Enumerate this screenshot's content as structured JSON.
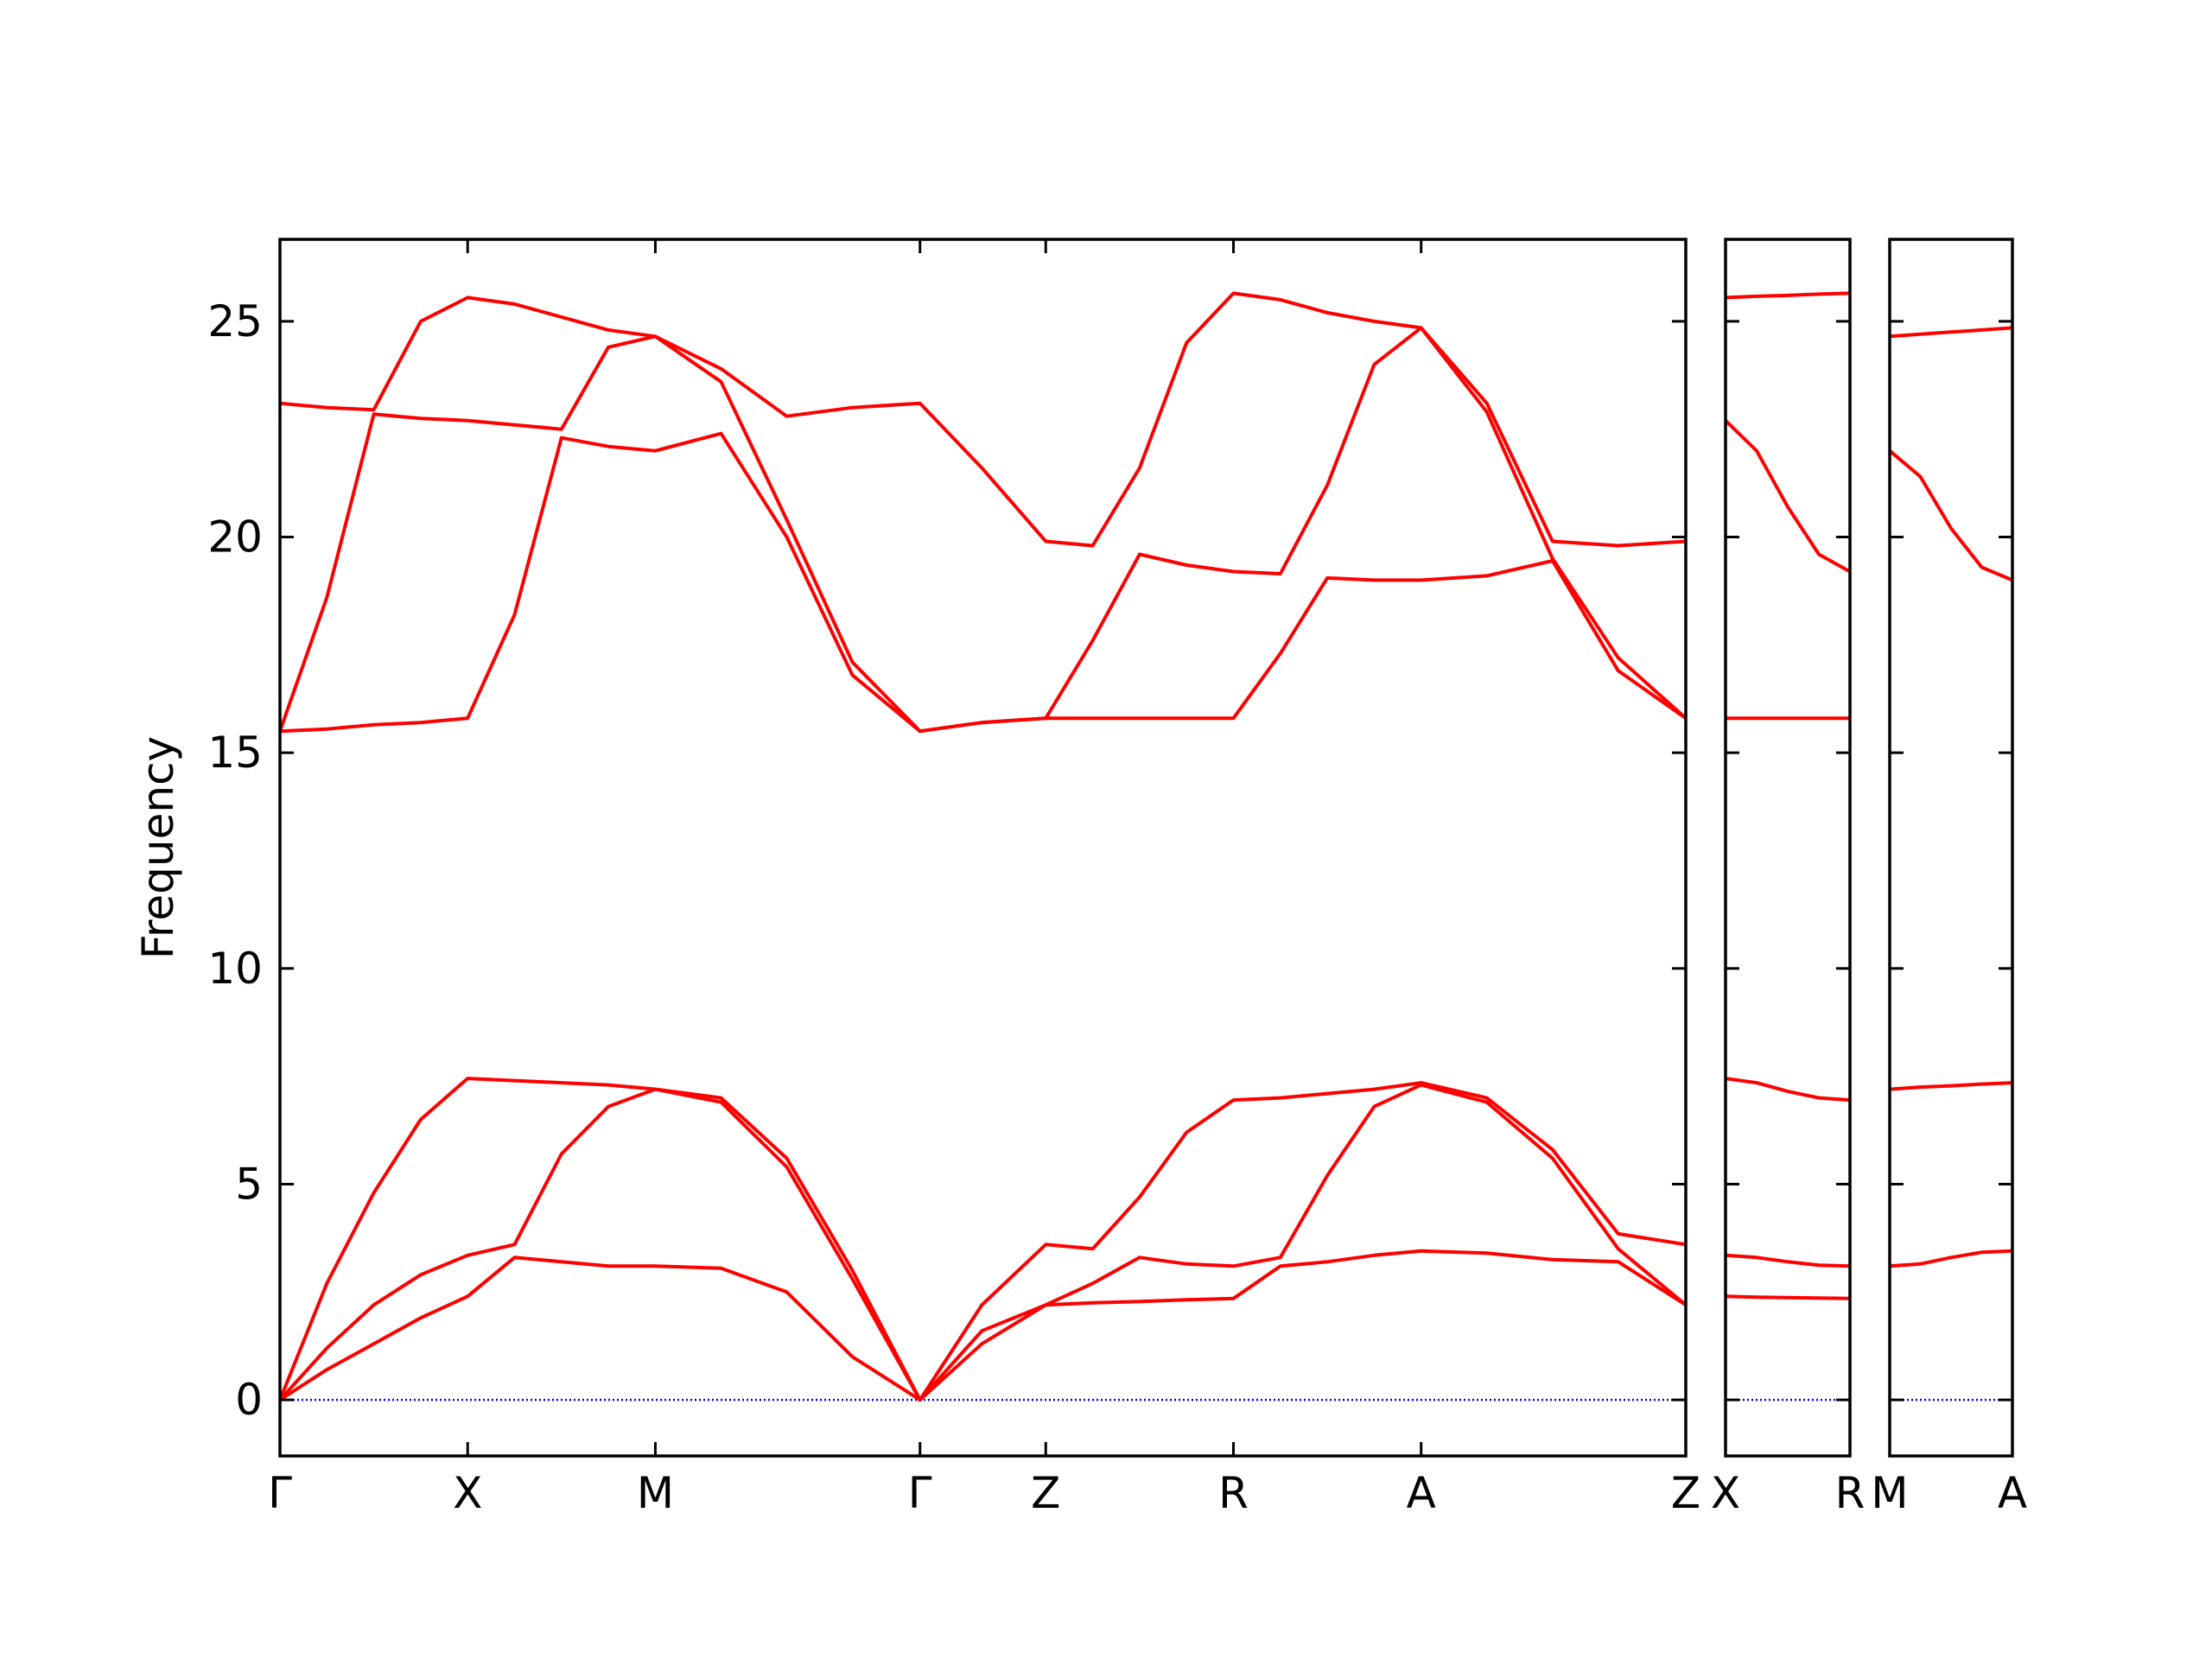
{
  "chart_data": [
    {
      "type": "line",
      "ylabel": "Frequency",
      "x": [
        0,
        0.25,
        0.5,
        0.75,
        1,
        1.25,
        1.5,
        1.75,
        2,
        2.35,
        2.7,
        3.05,
        3.41,
        3.74,
        4.08,
        4.33,
        4.58,
        4.83,
        5.08,
        5.33,
        5.58,
        5.83,
        6.08,
        6.43,
        6.78,
        7.13,
        7.49
      ],
      "series": [
        {
          "color": "#ff0000",
          "values": [
            0,
            0.7,
            1.3,
            1.9,
            2.4,
            3.3,
            3.2,
            3.1,
            3.1,
            3.05,
            2.5,
            1.0,
            0,
            1.3,
            2.2,
            2.25,
            2.28,
            2.32,
            2.35,
            3.1,
            3.2,
            3.35,
            3.45,
            3.4,
            3.25,
            3.2,
            2.2
          ]
        },
        {
          "color": "#ff0000",
          "values": [
            0,
            1.2,
            2.2,
            2.9,
            3.35,
            3.6,
            5.7,
            6.8,
            7.2,
            6.9,
            5.4,
            2.8,
            0,
            1.6,
            2.2,
            2.7,
            3.3,
            3.15,
            3.1,
            3.3,
            5.2,
            6.8,
            7.3,
            6.9,
            5.6,
            3.5,
            2.2
          ]
        },
        {
          "color": "#ff0000",
          "values": [
            0,
            2.7,
            4.8,
            6.5,
            7.45,
            7.4,
            7.35,
            7.3,
            7.2,
            7.0,
            5.6,
            3.0,
            0,
            2.2,
            3.6,
            3.5,
            4.7,
            6.2,
            6.95,
            7.0,
            7.1,
            7.2,
            7.35,
            7.0,
            5.8,
            3.85,
            3.6
          ]
        },
        {
          "color": "#ff0000",
          "values": [
            15.5,
            15.55,
            15.65,
            15.7,
            15.8,
            18.2,
            22.3,
            22.1,
            22.0,
            22.4,
            20.0,
            16.8,
            15.5,
            15.7,
            15.8,
            15.8,
            15.8,
            15.8,
            15.8,
            17.3,
            19.05,
            19.0,
            19.0,
            19.1,
            19.45,
            16.9,
            15.8
          ]
        },
        {
          "color": "#ff0000",
          "values": [
            15.5,
            18.6,
            22.85,
            22.75,
            22.7,
            22.6,
            22.5,
            24.4,
            24.65,
            23.6,
            20.4,
            17.1,
            15.5,
            15.7,
            15.8,
            17.6,
            19.6,
            19.35,
            19.2,
            19.15,
            21.2,
            24.0,
            24.85,
            22.9,
            19.5,
            17.2,
            15.8
          ]
        },
        {
          "color": "#ff0000",
          "values": [
            23.1,
            23.0,
            22.95,
            25.0,
            25.55,
            25.4,
            25.1,
            24.8,
            24.65,
            23.9,
            22.8,
            23.0,
            23.1,
            21.6,
            19.9,
            19.8,
            21.6,
            24.5,
            25.65,
            25.5,
            25.2,
            25.0,
            24.85,
            23.1,
            19.9,
            19.8,
            19.9
          ]
        }
      ],
      "xlim": [
        0,
        7.49
      ],
      "xticks": [
        {
          "value": 0,
          "label": "Γ"
        },
        {
          "value": 1,
          "label": "X"
        },
        {
          "value": 2,
          "label": "M"
        },
        {
          "value": 3.41,
          "label": "Γ"
        },
        {
          "value": 4.08,
          "label": "Z"
        },
        {
          "value": 5.08,
          "label": "R"
        },
        {
          "value": 6.08,
          "label": "A"
        },
        {
          "value": 7.49,
          "label": "Z"
        }
      ],
      "ylim": [
        -1.3,
        26.9
      ],
      "yticks": [
        0,
        5,
        10,
        15,
        20,
        25
      ],
      "show_ytick_labels": true,
      "hline": 0,
      "hline_color": "#0000ff"
    },
    {
      "type": "line",
      "x": [
        0,
        0.165,
        0.33,
        0.495,
        0.66
      ],
      "series": [
        {
          "color": "#ff0000",
          "values": [
            2.4,
            2.38,
            2.37,
            2.36,
            2.35
          ]
        },
        {
          "color": "#ff0000",
          "values": [
            3.35,
            3.3,
            3.2,
            3.12,
            3.1
          ]
        },
        {
          "color": "#ff0000",
          "values": [
            7.45,
            7.35,
            7.15,
            7.0,
            6.95
          ]
        },
        {
          "color": "#ff0000",
          "values": [
            15.8,
            15.8,
            15.8,
            15.8,
            15.8
          ]
        },
        {
          "color": "#ff0000",
          "values": [
            22.7,
            22.0,
            20.7,
            19.6,
            19.2
          ]
        },
        {
          "color": "#ff0000",
          "values": [
            25.55,
            25.58,
            25.6,
            25.63,
            25.65
          ]
        }
      ],
      "xlim": [
        0,
        0.66
      ],
      "xticks": [
        {
          "value": 0,
          "label": "X"
        },
        {
          "value": 0.66,
          "label": "R"
        }
      ],
      "ylim": [
        -1.3,
        26.9
      ],
      "yticks": [
        0,
        5,
        10,
        15,
        20,
        25
      ],
      "show_ytick_labels": false,
      "hline": 0,
      "hline_color": "#0000ff"
    },
    {
      "type": "line",
      "x": [
        0,
        0.165,
        0.33,
        0.495,
        0.66
      ],
      "series": [
        {
          "color": "#ff0000",
          "values": [
            3.1,
            3.15,
            3.3,
            3.42,
            3.45
          ]
        },
        {
          "color": "#ff0000",
          "values": [
            7.2,
            7.25,
            7.28,
            7.32,
            7.35
          ]
        },
        {
          "color": "#ff0000",
          "values": [
            22.0,
            21.4,
            20.2,
            19.3,
            19.0
          ]
        },
        {
          "color": "#ff0000",
          "values": [
            24.65,
            24.7,
            24.75,
            24.8,
            24.85
          ]
        }
      ],
      "xlim": [
        0,
        0.66
      ],
      "xticks": [
        {
          "value": 0,
          "label": "M"
        },
        {
          "value": 0.66,
          "label": "A"
        }
      ],
      "ylim": [
        -1.3,
        26.9
      ],
      "yticks": [
        0,
        5,
        10,
        15,
        20,
        25
      ],
      "show_ytick_labels": false,
      "hline": 0,
      "hline_color": "#0000ff"
    }
  ]
}
